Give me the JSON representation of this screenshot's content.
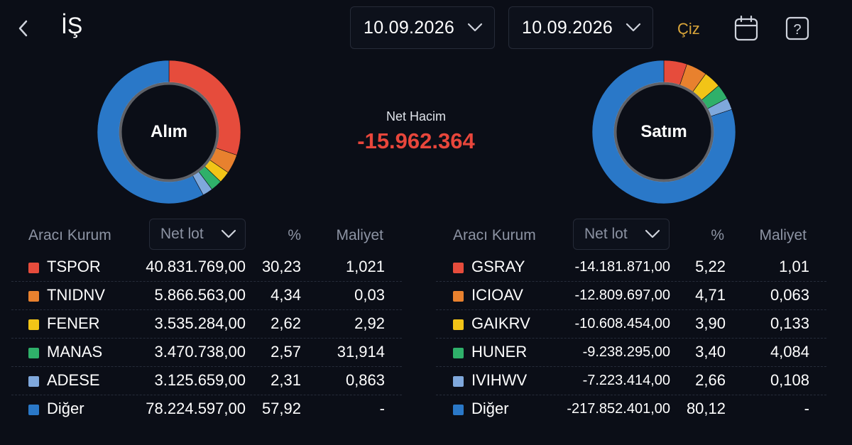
{
  "header": {
    "title": "İŞ",
    "date_from": "10.09.2026",
    "date_to": "10.09.2026",
    "draw_label": "Çiz"
  },
  "icons": {
    "back": "chevron-left-icon",
    "calendar": "calendar-icon",
    "help": "help-icon"
  },
  "summary": {
    "net_hacim_label": "Net Hacim",
    "net_hacim_value": "-15.962.364"
  },
  "colors": {
    "red": "#e64c3c",
    "orange": "#e8812e",
    "yellow": "#f2c417",
    "green": "#2fb06a",
    "lightblue": "#7fa8dc",
    "blue": "#2a78c8",
    "negative": "#e8463b",
    "accent": "#d9a53a"
  },
  "buy": {
    "label": "Alım",
    "col_broker": "Aracı Kurum",
    "col_netlot": "Net lot",
    "col_pct": "%",
    "col_cost": "Maliyet",
    "rows": [
      {
        "name": "TSPOR",
        "netlot": "40.831.769,00",
        "pct": "30,23",
        "cost": "1,021",
        "color": "red"
      },
      {
        "name": "TNIDNV",
        "netlot": "5.866.563,00",
        "pct": "4,34",
        "cost": "0,03",
        "color": "orange"
      },
      {
        "name": "FENER",
        "netlot": "3.535.284,00",
        "pct": "2,62",
        "cost": "2,92",
        "color": "yellow"
      },
      {
        "name": "MANAS",
        "netlot": "3.470.738,00",
        "pct": "2,57",
        "cost": "31,914",
        "color": "green"
      },
      {
        "name": "ADESE",
        "netlot": "3.125.659,00",
        "pct": "2,31",
        "cost": "0,863",
        "color": "lightblue"
      },
      {
        "name": "Diğer",
        "netlot": "78.224.597,00",
        "pct": "57,92",
        "cost": "-",
        "color": "blue"
      }
    ],
    "slices": [
      30.23,
      4.34,
      2.62,
      2.57,
      2.31,
      57.92
    ]
  },
  "sell": {
    "label": "Satım",
    "col_broker": "Aracı Kurum",
    "col_netlot": "Net lot",
    "col_pct": "%",
    "col_cost": "Maliyet",
    "rows": [
      {
        "name": "GSRAY",
        "netlot": "-14.181.871,00",
        "pct": "5,22",
        "cost": "1,01",
        "color": "red"
      },
      {
        "name": "ICIOAV",
        "netlot": "-12.809.697,00",
        "pct": "4,71",
        "cost": "0,063",
        "color": "orange"
      },
      {
        "name": "GAIKRV",
        "netlot": "-10.608.454,00",
        "pct": "3,90",
        "cost": "0,133",
        "color": "yellow"
      },
      {
        "name": "HUNER",
        "netlot": "-9.238.295,00",
        "pct": "3,40",
        "cost": "4,084",
        "color": "green"
      },
      {
        "name": "IVIHWV",
        "netlot": "-7.223.414,00",
        "pct": "2,66",
        "cost": "0,108",
        "color": "lightblue"
      },
      {
        "name": "Diğer",
        "netlot": "-217.852.401,00",
        "pct": "80,12",
        "cost": "-",
        "color": "blue"
      }
    ],
    "slices": [
      5.22,
      4.71,
      3.9,
      3.4,
      2.66,
      80.12
    ]
  }
}
